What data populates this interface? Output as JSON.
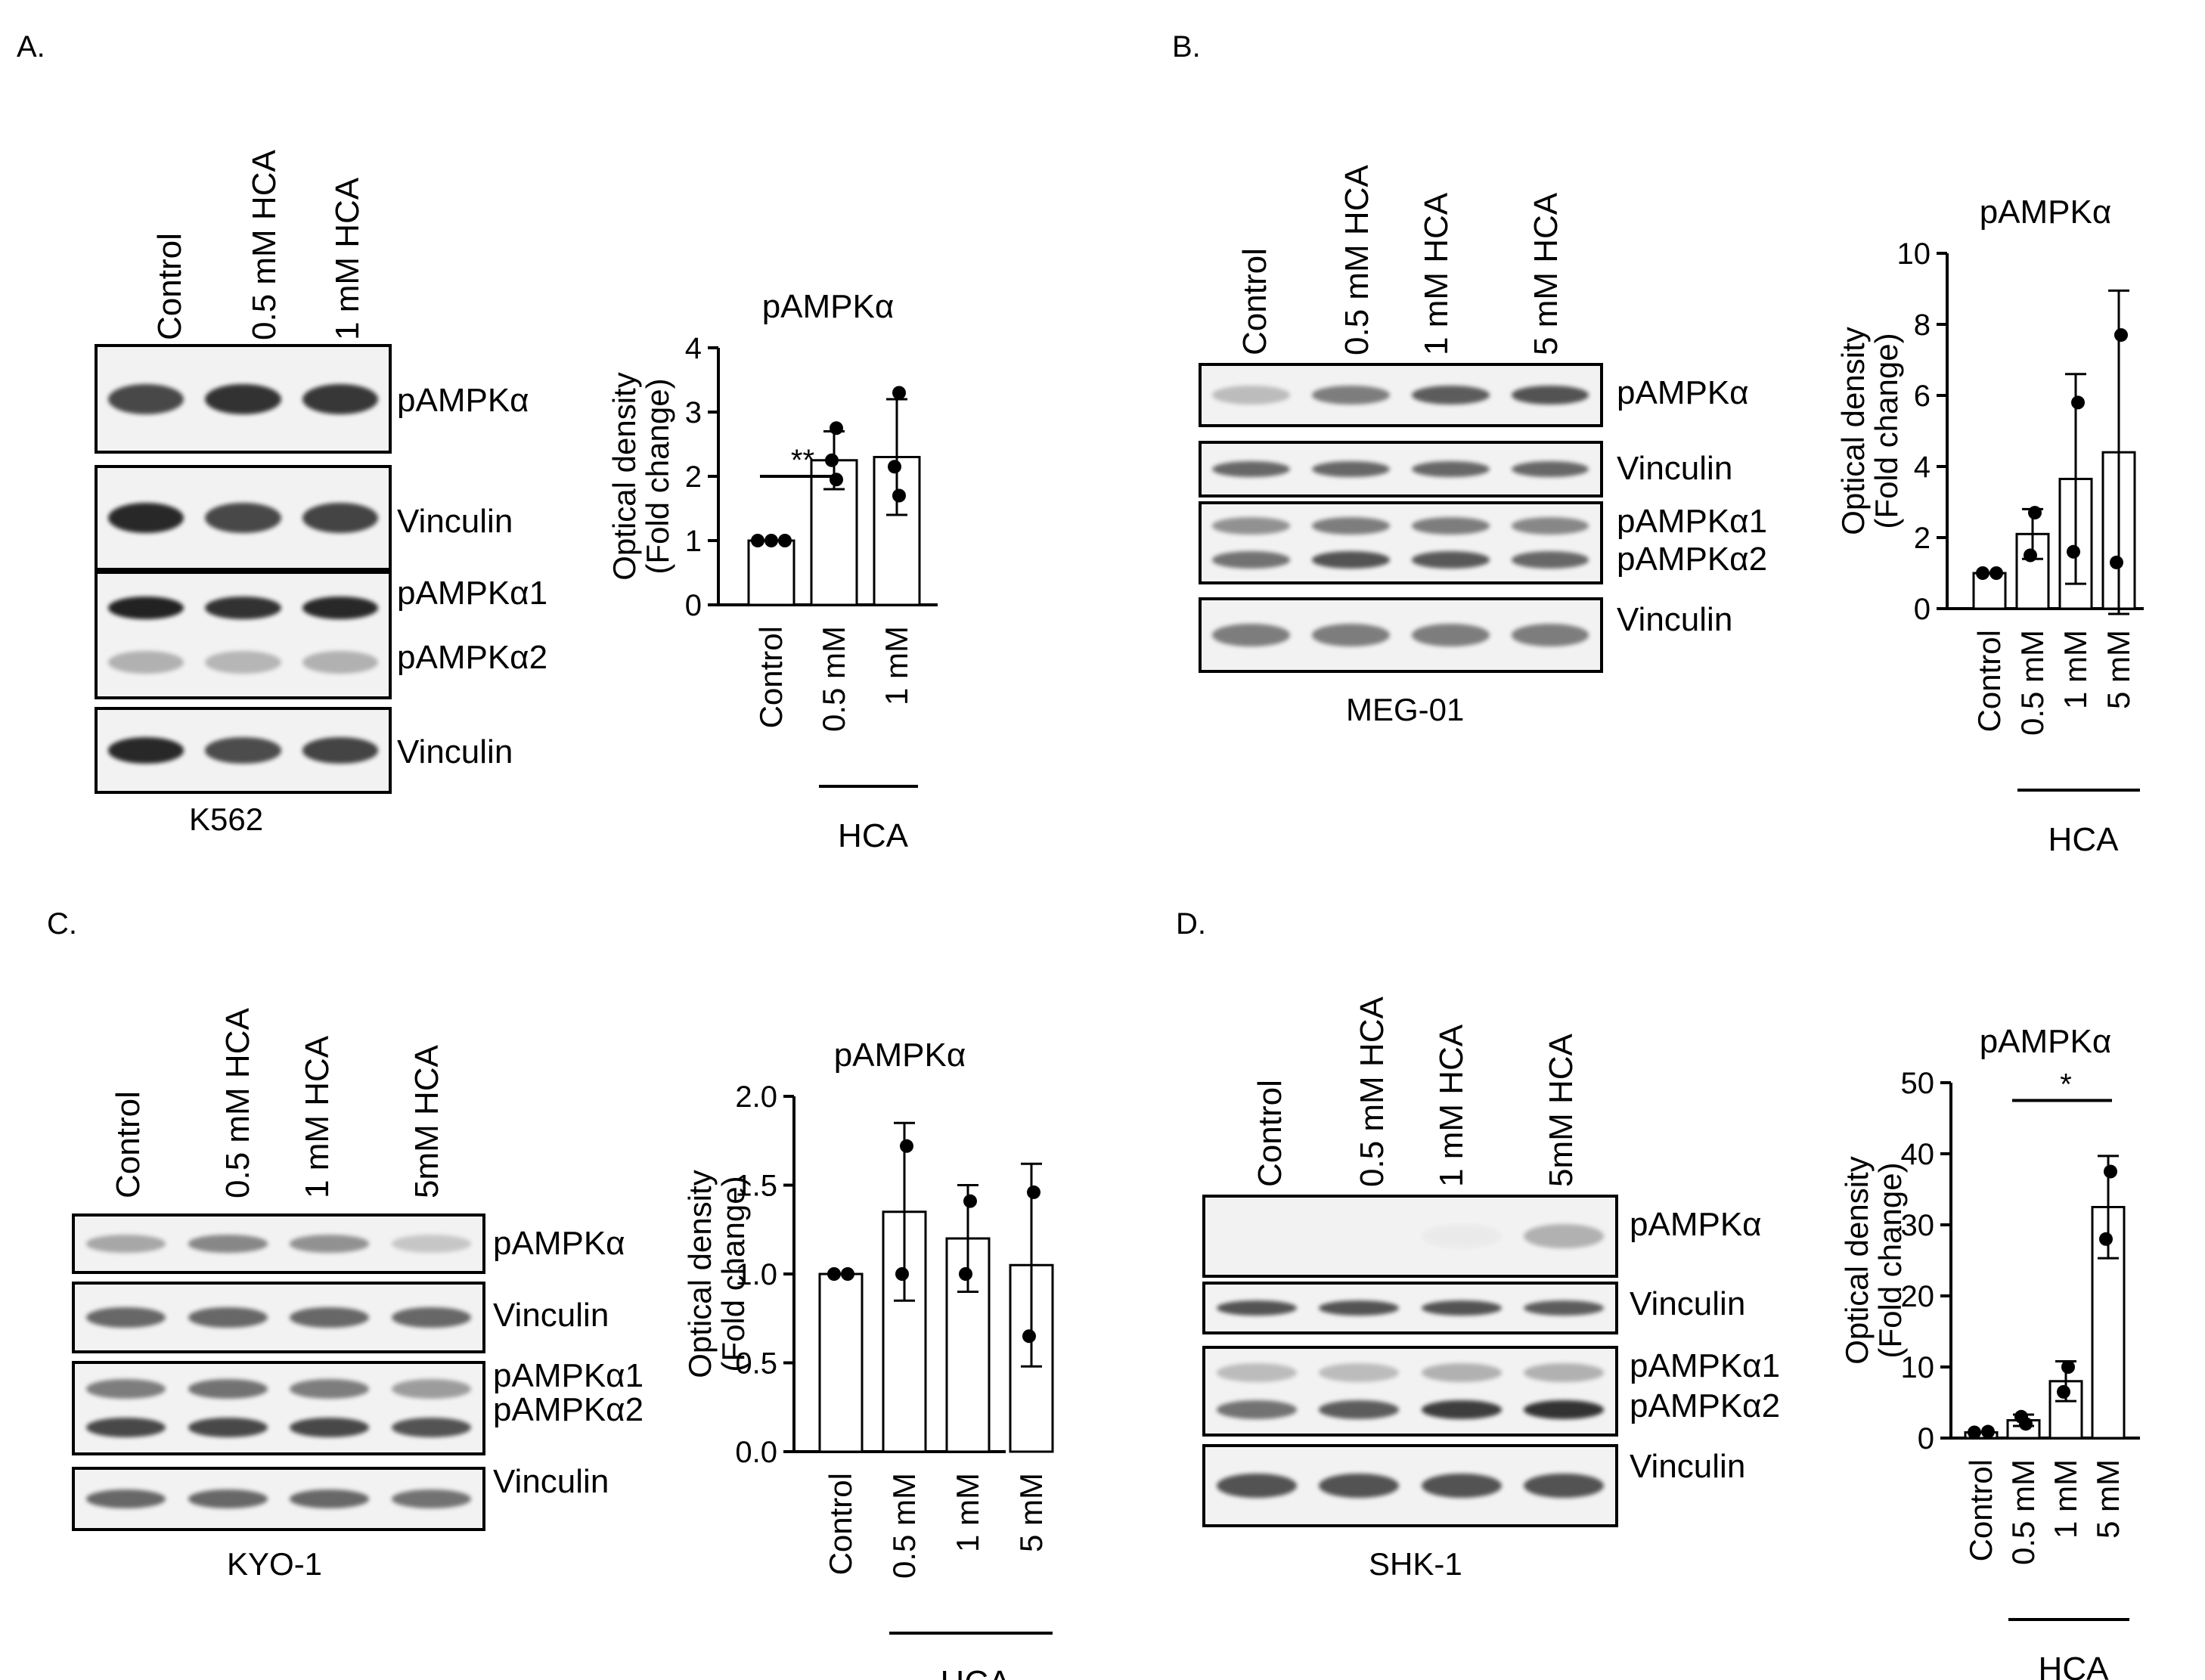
{
  "panels": [
    {
      "letter": "A.",
      "cell_line": "K562",
      "lanes": [
        "Control",
        "0.5 mM HCA",
        "1 mM HCA"
      ],
      "blot_labels": [
        "pAMPKα",
        "Vinculin",
        "pAMPKα1",
        "pAMPKα2",
        "Vinculin"
      ],
      "band_intensity": {
        "pAMPKa": [
          0.8,
          0.9,
          0.88
        ],
        "vinculin_1": [
          0.95,
          0.8,
          0.82
        ],
        "pAMPKa1": [
          0.98,
          0.9,
          0.95
        ],
        "pAMPKa2": [
          0.3,
          0.28,
          0.3
        ],
        "vinculin_2": [
          0.95,
          0.78,
          0.82
        ]
      }
    },
    {
      "letter": "B.",
      "cell_line": "MEG-01",
      "lanes": [
        "Control",
        "0.5 mM HCA",
        "1 mM HCA",
        "5 mM HCA"
      ],
      "blot_labels": [
        "pAMPKα",
        "Vinculin",
        "pAMPKα1",
        "pAMPKα2",
        "Vinculin"
      ],
      "band_intensity": {
        "pAMPKa": [
          0.25,
          0.55,
          0.7,
          0.75
        ],
        "vinculin_1": [
          0.65,
          0.65,
          0.65,
          0.65
        ],
        "pAMPKa1": [
          0.45,
          0.55,
          0.55,
          0.5
        ],
        "pAMPKa2": [
          0.6,
          0.75,
          0.72,
          0.65
        ],
        "vinculin_2": [
          0.55,
          0.55,
          0.55,
          0.55
        ]
      }
    },
    {
      "letter": "C.",
      "cell_line": "KYO-1",
      "lanes": [
        "Control",
        "0.5 mM HCA",
        "1 mM HCA",
        "5mM HCA"
      ],
      "blot_labels": [
        "pAMPKα",
        "Vinculin",
        "pAMPKα1",
        "pAMPKα2",
        "Vinculin"
      ],
      "band_intensity": {
        "pAMPKa": [
          0.35,
          0.5,
          0.45,
          0.2
        ],
        "vinculin_1": [
          0.65,
          0.65,
          0.65,
          0.65
        ],
        "pAMPKa1": [
          0.55,
          0.6,
          0.55,
          0.4
        ],
        "pAMPKa2": [
          0.8,
          0.8,
          0.8,
          0.75
        ],
        "vinculin_2": [
          0.65,
          0.65,
          0.65,
          0.6
        ]
      }
    },
    {
      "letter": "D.",
      "cell_line": "SHK-1",
      "lanes": [
        "Control",
        "0.5 mM HCA",
        "1 mM HCA",
        "5mM HCA"
      ],
      "blot_labels": [
        "pAMPKα",
        "Vinculin",
        "pAMPKα1",
        "pAMPKα2",
        "Vinculin"
      ],
      "band_intensity": {
        "pAMPKa": [
          0.0,
          0.0,
          0.03,
          0.3
        ],
        "vinculin_1": [
          0.75,
          0.75,
          0.75,
          0.7
        ],
        "pAMPKa1": [
          0.25,
          0.25,
          0.3,
          0.3
        ],
        "pAMPKa2": [
          0.6,
          0.7,
          0.85,
          0.9
        ],
        "vinculin_2": [
          0.75,
          0.75,
          0.75,
          0.75
        ]
      }
    }
  ],
  "chart_data": [
    {
      "type": "bar",
      "title": "pAMPKα",
      "ylabel_lines": [
        "Optical density",
        "(Fold change)"
      ],
      "categories": [
        "Control",
        "0.5 mM",
        "1 mM"
      ],
      "group_label": "HCA",
      "ylim": [
        0,
        4
      ],
      "yticks": [
        "0",
        "1",
        "2",
        "3",
        "4"
      ],
      "values": [
        1.0,
        2.25,
        2.3
      ],
      "error": [
        0,
        0.45,
        0.9
      ],
      "points": [
        [
          1.0,
          1.0,
          1.0
        ],
        [
          2.75,
          2.25,
          1.95
        ],
        [
          3.3,
          2.15,
          1.7
        ]
      ],
      "annotation": {
        "text": "**",
        "from": 0,
        "to": 1
      }
    },
    {
      "type": "bar",
      "title": "pAMPKα",
      "ylabel_lines": [
        "Optical density",
        "(Fold change)"
      ],
      "categories": [
        "Control",
        "0.5 mM",
        "1 mM",
        "5 mM"
      ],
      "group_label": "HCA",
      "ylim": [
        0,
        10
      ],
      "yticks": [
        "0",
        "2",
        "4",
        "6",
        "8",
        "10"
      ],
      "values": [
        1.0,
        2.1,
        3.65,
        4.4
      ],
      "error": [
        0,
        0.7,
        2.95,
        4.55
      ],
      "points": [
        [
          1.0,
          1.0
        ],
        [
          2.7,
          1.5
        ],
        [
          5.8,
          1.6
        ],
        [
          7.7,
          1.3
        ]
      ]
    },
    {
      "type": "bar",
      "title": "pAMPKα",
      "ylabel_lines": [
        "Optical density",
        "(Fold change)"
      ],
      "categories": [
        "Control",
        "0.5 mM",
        "1 mM",
        "5 mM"
      ],
      "group_label": "HCA",
      "ylim": [
        0,
        2
      ],
      "yticks": [
        "0.0",
        "0.5",
        "1.0",
        "1.5",
        "2.0"
      ],
      "values": [
        1.0,
        1.35,
        1.2,
        1.05
      ],
      "error": [
        0,
        0.5,
        0.3,
        0.57
      ],
      "points": [
        [
          1.0,
          1.0
        ],
        [
          1.72,
          1.0
        ],
        [
          1.41,
          1.0
        ],
        [
          1.46,
          0.65
        ]
      ]
    },
    {
      "type": "bar",
      "title": "pAMPKα",
      "ylabel_lines": [
        "Optical density",
        "(Fold change)"
      ],
      "categories": [
        "Control",
        "0.5 mM",
        "1 mM",
        "5 mM"
      ],
      "group_label": "HCA",
      "ylim": [
        0,
        50
      ],
      "yticks": [
        "0",
        "10",
        "20",
        "30",
        "40",
        "50"
      ],
      "values": [
        0.8,
        2.5,
        8.0,
        32.5
      ],
      "error": [
        0,
        0.8,
        2.8,
        7.2
      ],
      "points": [
        [
          0.8,
          0.9
        ],
        [
          2.0,
          3.0
        ],
        [
          10.0,
          6.5
        ],
        [
          37.5,
          28.0
        ]
      ],
      "annotation": {
        "text": "*",
        "from": 1,
        "to": 3
      }
    }
  ]
}
